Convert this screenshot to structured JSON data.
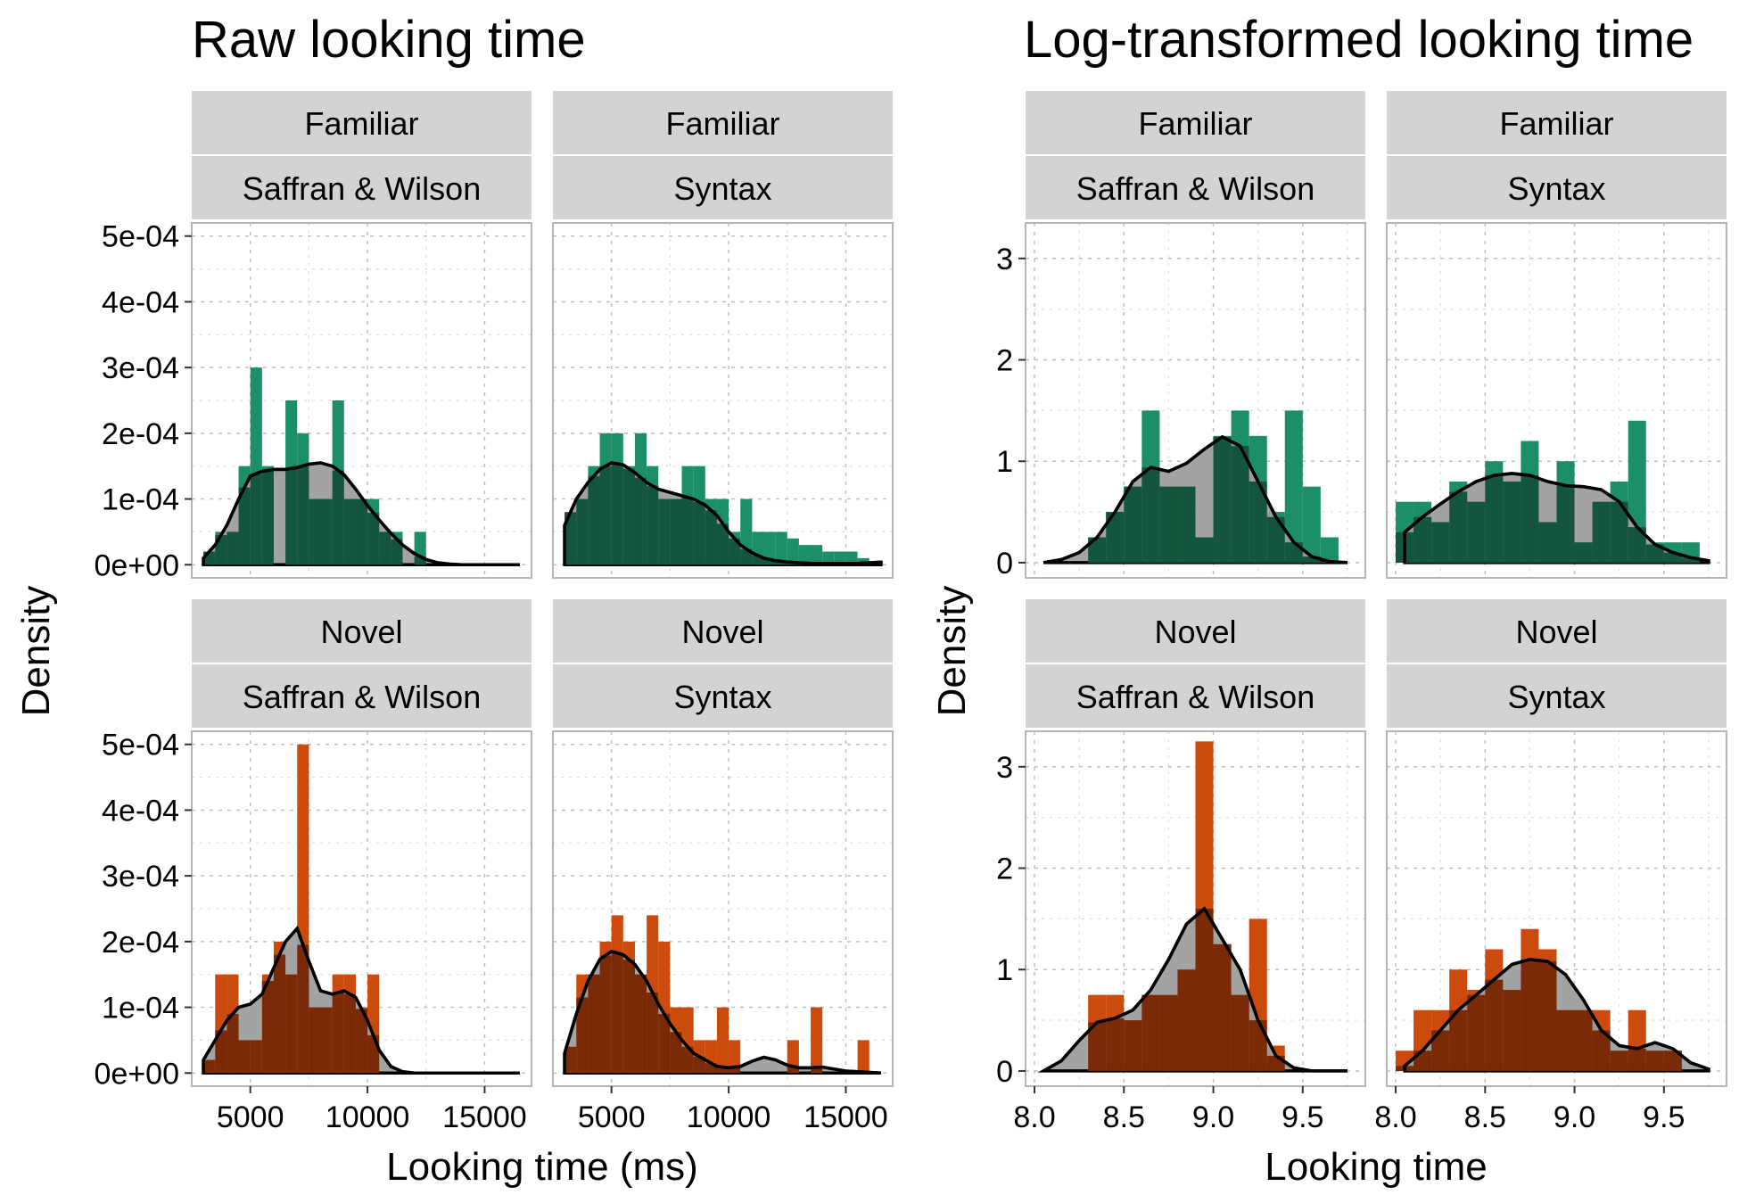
{
  "colors": {
    "familiar": "#1c8f6a",
    "novel": "#cc4a0b",
    "familiar_overlap": "#14553d",
    "novel_overlap": "#7a2a06",
    "density": "#9e9e9e"
  },
  "chart_data": [
    {
      "type": "histogram+density",
      "title": "Raw looking time",
      "xlabel": "Looking time (ms)",
      "ylabel": "Density",
      "x_ticks": [
        5000,
        10000,
        15000
      ],
      "x_tick_labels": [
        "5000",
        "10000",
        "15000"
      ],
      "xlim": [
        2500,
        17000
      ],
      "y_ticks": [
        0,
        0.0001,
        0.0002,
        0.0003,
        0.0004,
        0.0005
      ],
      "y_tick_labels": [
        "0e+00",
        "1e-04",
        "2e-04",
        "3e-04",
        "4e-04",
        "5e-04"
      ],
      "ylim": [
        -2e-05,
        0.00052
      ],
      "panels": [
        {
          "row": "Familiar",
          "col": "Saffran & Wilson",
          "condition": "familiar",
          "bins": {
            "start": 3000,
            "width": 500,
            "values": [
              2e-05,
              5e-05,
              5e-05,
              0.00015,
              0.0003,
              0.00015,
              0,
              0.00025,
              0.0002,
              0.0001,
              0.0001,
              0.00025,
              0.0001,
              0.0001,
              0.0001,
              5e-05,
              5e-05,
              0,
              5e-05
            ]
          },
          "density": {
            "x": [
              3000,
              3500,
              4000,
              4500,
              5000,
              5500,
              6000,
              6500,
              7000,
              7500,
              8000,
              8500,
              9000,
              9500,
              10000,
              10500,
              11000,
              11500,
              12000,
              12500,
              13000,
              13500,
              14000,
              14500,
              15000,
              15500,
              16000,
              16500
            ],
            "y": [
              1e-05,
              3e-05,
              6e-05,
              0.0001,
              0.000135,
              0.000142,
              0.000145,
              0.000145,
              0.000148,
              0.000153,
              0.000155,
              0.00015,
              0.000137,
              0.000115,
              9e-05,
              6.8e-05,
              4.8e-05,
              3e-05,
              1.7e-05,
              8e-06,
              3e-06,
              1e-06,
              0,
              0,
              0,
              0,
              0,
              0
            ]
          }
        },
        {
          "row": "Familiar",
          "col": "Syntax",
          "condition": "familiar",
          "bins": {
            "start": 3000,
            "width": 500,
            "values": [
              8e-05,
              0.0001,
              0.00015,
              0.0002,
              0.0002,
              0.00015,
              0.0002,
              0.00015,
              0.0001,
              0.0001,
              0.00015,
              0.00015,
              0.0001,
              0.0001,
              5e-05,
              0.0001,
              5e-05,
              5e-05,
              5e-05,
              4e-05,
              3e-05,
              3e-05,
              2e-05,
              2e-05,
              2e-05,
              1e-05,
              0,
              0,
              0
            ]
          },
          "density": {
            "x": [
              3000,
              3500,
              4000,
              4500,
              5000,
              5500,
              6000,
              6500,
              7000,
              7500,
              8000,
              8500,
              9000,
              9500,
              10000,
              10500,
              11000,
              11500,
              12000,
              12500,
              13000,
              13500,
              14000,
              14500,
              15000,
              15500,
              16000,
              16500
            ],
            "y": [
              6e-05,
              0.0001,
              0.000125,
              0.000145,
              0.000155,
              0.000152,
              0.00014,
              0.000125,
              0.000115,
              0.00011,
              0.000105,
              0.0001,
              9.06e-05,
              7.5e-05,
              5e-05,
              3e-05,
              1.8e-05,
              1e-05,
              6e-06,
              4e-06,
              3e-06,
              2e-06,
              2e-06,
              2e-06,
              2e-06,
              2e-06,
              3e-06,
              4e-06
            ]
          }
        },
        {
          "row": "Novel",
          "col": "Saffran & Wilson",
          "condition": "novel",
          "bins": {
            "start": 3000,
            "width": 500,
            "values": [
              2e-05,
              0.00015,
              0.00015,
              5e-05,
              5e-05,
              0.00015,
              0.0002,
              0.00015,
              0.0005,
              0.0001,
              0.0001,
              0.00015,
              0.00015,
              0.0001,
              0.00015,
              0,
              0,
              0,
              0,
              0,
              0,
              0,
              0,
              0,
              0,
              0,
              0
            ]
          },
          "density": {
            "x": [
              3000,
              3500,
              4000,
              4500,
              5000,
              5500,
              6000,
              6500,
              7000,
              7500,
              8000,
              8500,
              9000,
              9500,
              10000,
              10500,
              11000,
              11500,
              12000,
              12500,
              13000,
              13500,
              14000,
              14500,
              15000,
              15500,
              16000,
              16500
            ],
            "y": [
              2e-05,
              5e-05,
              8e-05,
              0.0001,
              0.000105,
              0.00012,
              0.00016,
              0.0002,
              0.00022,
              0.00017,
              0.000125,
              0.00012,
              0.000125,
              0.000115,
              8e-05,
              3.5e-05,
              1e-05,
              2e-06,
              0,
              0,
              0,
              0,
              0,
              0,
              0,
              0,
              0,
              0
            ]
          }
        },
        {
          "row": "Novel",
          "col": "Syntax",
          "condition": "novel",
          "bins": {
            "start": 3000,
            "width": 500,
            "values": [
              4e-05,
              0.00015,
              0.00015,
              0.0002,
              0.00024,
              0.0002,
              0.00015,
              0.00024,
              0.0002,
              0.0001,
              0.0001,
              5e-05,
              5e-05,
              0.0001,
              5e-05,
              0,
              0,
              0,
              0,
              5e-05,
              0,
              0.0001,
              0,
              0,
              0,
              5e-05,
              0,
              0
            ]
          },
          "density": {
            "x": [
              3000,
              3500,
              4000,
              4500,
              5000,
              5500,
              6000,
              6500,
              7000,
              7500,
              8000,
              8500,
              9000,
              9500,
              10000,
              10500,
              11000,
              11500,
              12000,
              12500,
              13000,
              13500,
              14000,
              14500,
              15000,
              15500,
              16000,
              16500
            ],
            "y": [
              3e-05,
              9e-05,
              0.00014,
              0.000173,
              0.000185,
              0.00018,
              0.000165,
              0.00014,
              0.000105,
              7.5e-05,
              5e-05,
              3e-05,
              2e-05,
              1e-05,
              8e-06,
              1e-05,
              1.8e-05,
              2.4e-05,
              2e-05,
              1.2e-05,
              8e-06,
              8e-06,
              9e-06,
              6e-06,
              3e-06,
              2e-06,
              1e-06,
              0
            ]
          }
        }
      ]
    },
    {
      "type": "histogram+density",
      "title": "Log-transformed looking time",
      "xlabel": "Looking time",
      "ylabel": "Density",
      "x_ticks": [
        8.0,
        8.5,
        9.0,
        9.5
      ],
      "x_tick_labels": [
        "8.0",
        "8.5",
        "9.0",
        "9.5"
      ],
      "xlim": [
        7.95,
        9.85
      ],
      "y_ticks": [
        0,
        1,
        2,
        3
      ],
      "y_tick_labels": [
        "0",
        "1",
        "2",
        "3"
      ],
      "ylim": [
        -0.15,
        3.35
      ],
      "panels": [
        {
          "row": "Familiar",
          "col": "Saffran & Wilson",
          "condition": "familiar",
          "bins": {
            "start": 8.0,
            "width": 0.1,
            "values": [
              0,
              0,
              0,
              0.25,
              0.5,
              0.75,
              1.5,
              0.75,
              0.75,
              0.25,
              1.25,
              1.5,
              1.25,
              0.5,
              1.5,
              0.75,
              0.25,
              0,
              0,
              0,
              0
            ]
          },
          "density": {
            "x": [
              8.05,
              8.15,
              8.25,
              8.35,
              8.45,
              8.55,
              8.65,
              8.75,
              8.85,
              8.95,
              9.05,
              9.15,
              9.25,
              9.35,
              9.45,
              9.55,
              9.65,
              9.75
            ],
            "y": [
              0,
              0.03,
              0.1,
              0.25,
              0.5,
              0.8,
              0.94,
              0.9,
              0.98,
              1.12,
              1.24,
              1.15,
              0.8,
              0.45,
              0.2,
              0.06,
              0.01,
              0
            ]
          }
        },
        {
          "row": "Familiar",
          "col": "Syntax",
          "condition": "familiar",
          "bins": {
            "start": 8.0,
            "width": 0.1,
            "values": [
              0.6,
              0.6,
              0.4,
              0.8,
              0.6,
              1.0,
              0.8,
              1.2,
              0.4,
              1.0,
              0.2,
              0.6,
              0.8,
              1.4,
              0.2,
              0.2,
              0.2,
              0
            ]
          },
          "density": {
            "x": [
              8.05,
              8.15,
              8.25,
              8.35,
              8.45,
              8.55,
              8.65,
              8.75,
              8.85,
              8.95,
              9.05,
              9.15,
              9.25,
              9.35,
              9.45,
              9.55,
              9.65,
              9.75
            ],
            "y": [
              0.3,
              0.45,
              0.58,
              0.7,
              0.8,
              0.86,
              0.88,
              0.86,
              0.8,
              0.76,
              0.75,
              0.72,
              0.6,
              0.35,
              0.18,
              0.1,
              0.05,
              0.02
            ]
          }
        },
        {
          "row": "Novel",
          "col": "Saffran & Wilson",
          "condition": "novel",
          "bins": {
            "start": 8.0,
            "width": 0.1,
            "values": [
              0,
              0,
              0,
              0.75,
              0.75,
              0.5,
              0.75,
              0.75,
              1.0,
              3.25,
              1.25,
              0.75,
              1.5,
              0.25,
              0,
              0,
              0,
              0,
              0,
              0
            ]
          },
          "density": {
            "x": [
              8.05,
              8.15,
              8.25,
              8.35,
              8.45,
              8.55,
              8.65,
              8.75,
              8.85,
              8.95,
              9.05,
              9.15,
              9.25,
              9.35,
              9.45,
              9.55,
              9.65,
              9.75
            ],
            "y": [
              0,
              0.1,
              0.3,
              0.48,
              0.52,
              0.6,
              0.8,
              1.1,
              1.45,
              1.6,
              1.3,
              1.0,
              0.5,
              0.15,
              0.03,
              0,
              0,
              0
            ]
          }
        },
        {
          "row": "Novel",
          "col": "Syntax",
          "condition": "novel",
          "bins": {
            "start": 8.0,
            "width": 0.1,
            "values": [
              0.2,
              0.6,
              0.6,
              1.0,
              0.8,
              1.2,
              0.8,
              1.4,
              1.2,
              0.6,
              0.6,
              0.6,
              0.2,
              0.6,
              0.2,
              0.2,
              0
            ]
          },
          "density": {
            "x": [
              8.05,
              8.15,
              8.25,
              8.35,
              8.45,
              8.55,
              8.65,
              8.75,
              8.85,
              8.95,
              9.05,
              9.15,
              9.25,
              9.35,
              9.45,
              9.55,
              9.65,
              9.75
            ],
            "y": [
              0.05,
              0.2,
              0.4,
              0.6,
              0.75,
              0.9,
              1.05,
              1.1,
              1.08,
              0.95,
              0.7,
              0.4,
              0.25,
              0.22,
              0.28,
              0.22,
              0.08,
              0.02
            ]
          }
        }
      ]
    }
  ]
}
